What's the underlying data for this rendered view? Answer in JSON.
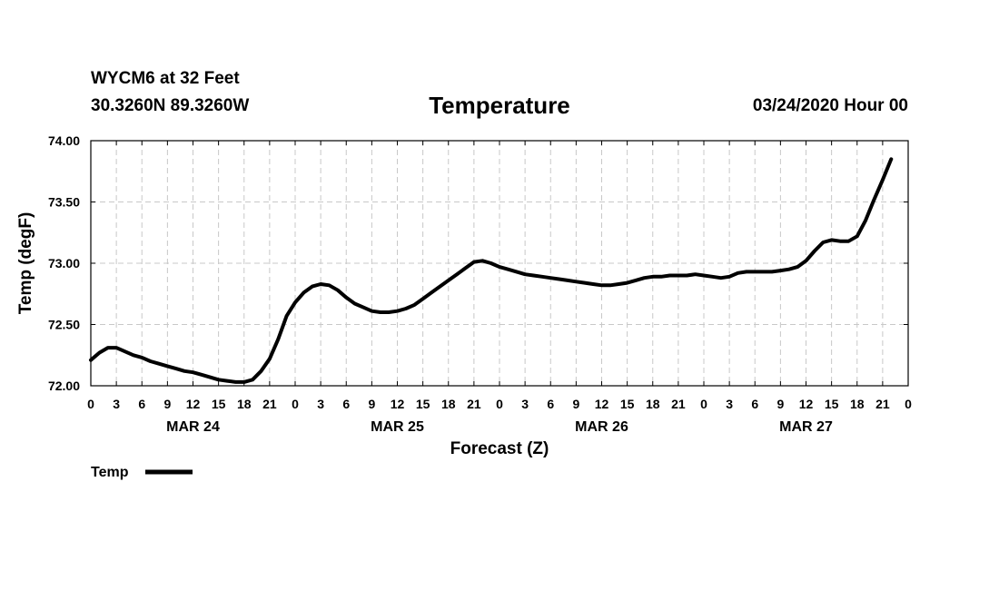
{
  "header": {
    "station": "WYCM6 at 32 Feet",
    "location": "30.3260N 89.3260W",
    "title": "Temperature",
    "run": "03/24/2020 Hour 00"
  },
  "chart_data": {
    "type": "line",
    "title": "Temperature",
    "xlabel": "Forecast (Z)",
    "ylabel": "Temp (degF)",
    "xlim": [
      0,
      96
    ],
    "ylim": [
      72.0,
      74.0
    ],
    "y_ticks": [
      "72.00",
      "72.50",
      "73.00",
      "73.50",
      "74.00"
    ],
    "x_tick_labels": [
      "0",
      "3",
      "6",
      "9",
      "12",
      "15",
      "18",
      "21",
      "0",
      "3",
      "6",
      "9",
      "12",
      "15",
      "18",
      "21",
      "0",
      "3",
      "6",
      "9",
      "12",
      "15",
      "18",
      "21",
      "0",
      "3",
      "6",
      "9",
      "12",
      "15",
      "18",
      "21",
      "0"
    ],
    "day_labels": [
      {
        "label": "MAR 24",
        "hour": 12
      },
      {
        "label": "MAR 25",
        "hour": 36
      },
      {
        "label": "MAR 26",
        "hour": 60
      },
      {
        "label": "MAR 27",
        "hour": 84
      }
    ],
    "grid": true,
    "legend": {
      "label": "Temp",
      "position": "bottom-left"
    },
    "series": [
      {
        "name": "Temp",
        "color": "#000000",
        "x": [
          0,
          1,
          2,
          3,
          4,
          5,
          6,
          7,
          8,
          9,
          10,
          11,
          12,
          13,
          14,
          15,
          16,
          17,
          18,
          19,
          20,
          21,
          22,
          23,
          24,
          25,
          26,
          27,
          28,
          29,
          30,
          31,
          32,
          33,
          34,
          35,
          36,
          37,
          38,
          39,
          40,
          41,
          42,
          43,
          44,
          45,
          46,
          47,
          48,
          49,
          50,
          51,
          52,
          53,
          54,
          55,
          56,
          57,
          58,
          59,
          60,
          61,
          62,
          63,
          64,
          65,
          66,
          67,
          68,
          69,
          70,
          71,
          72,
          73,
          74,
          75,
          76,
          77,
          78,
          79,
          80,
          81,
          82,
          83,
          84,
          85,
          86,
          87,
          88,
          89,
          90,
          91,
          92,
          93,
          94,
          95,
          96
        ],
        "values": [
          72.21,
          72.27,
          72.31,
          72.31,
          72.28,
          72.25,
          72.23,
          72.2,
          72.18,
          72.16,
          72.14,
          72.12,
          72.11,
          72.09,
          72.07,
          72.05,
          72.04,
          72.03,
          72.03,
          72.05,
          72.12,
          72.22,
          72.38,
          72.57,
          72.68,
          72.76,
          72.81,
          72.83,
          72.82,
          72.78,
          72.72,
          72.67,
          72.64,
          72.61,
          72.6,
          72.6,
          72.61,
          72.63,
          72.66,
          72.71,
          72.76,
          72.81,
          72.86,
          72.91,
          72.96,
          73.01,
          73.02,
          73.0,
          72.97,
          72.95,
          72.93,
          72.91,
          72.9,
          72.89,
          72.88,
          72.87,
          72.86,
          72.85,
          72.84,
          72.83,
          72.82,
          72.82,
          72.83,
          72.84,
          72.86,
          72.88,
          72.89,
          72.89,
          72.9,
          72.9,
          72.9,
          72.91,
          72.9,
          72.89,
          72.88,
          72.89,
          72.92,
          72.93,
          72.93,
          72.93,
          72.93,
          72.94,
          72.95,
          72.97,
          73.02,
          73.1,
          73.17,
          73.19,
          73.18,
          73.18,
          73.22,
          73.35,
          73.52,
          73.68,
          73.85,
          null,
          null
        ]
      }
    ]
  }
}
